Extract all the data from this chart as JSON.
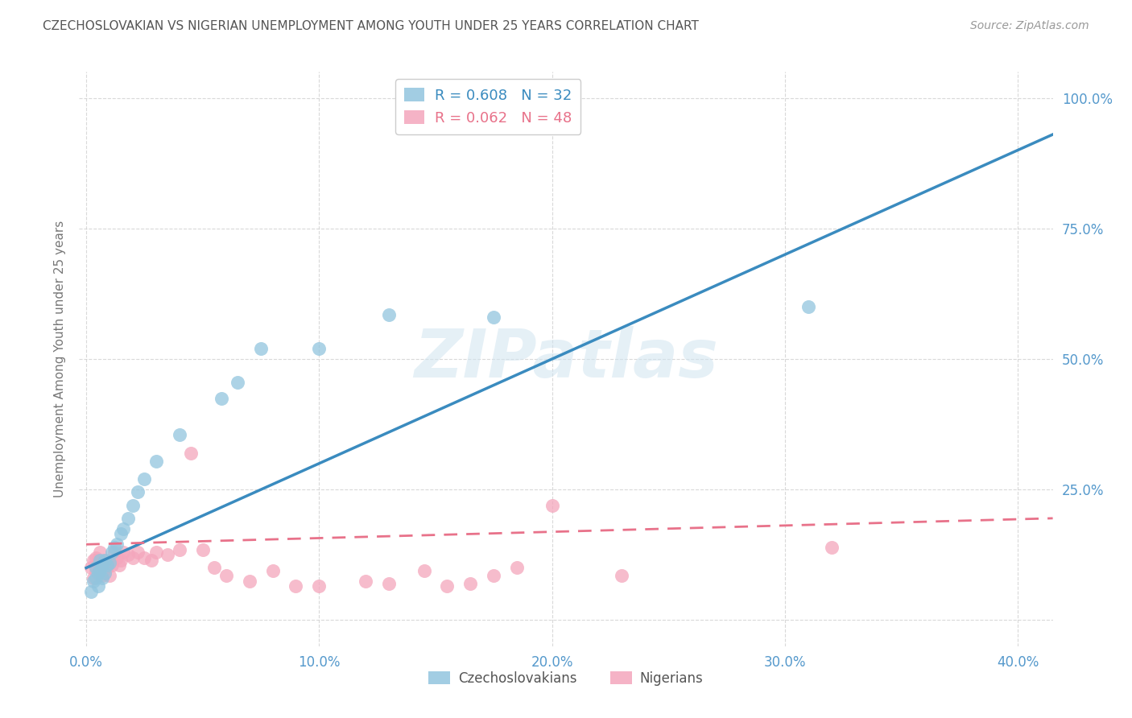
{
  "title": "CZECHOSLOVAKIAN VS NIGERIAN UNEMPLOYMENT AMONG YOUTH UNDER 25 YEARS CORRELATION CHART",
  "source": "Source: ZipAtlas.com",
  "ylabel": "Unemployment Among Youth under 25 years",
  "xlim": [
    -0.003,
    0.415
  ],
  "ylim": [
    -0.05,
    1.05
  ],
  "ytick_vals": [
    0.0,
    0.25,
    0.5,
    0.75,
    1.0
  ],
  "xtick_vals": [
    0.0,
    0.1,
    0.2,
    0.3,
    0.4
  ],
  "xtick_labels": [
    "0.0%",
    "10.0%",
    "20.0%",
    "30.0%",
    "40.0%"
  ],
  "ytick_labels": [
    "",
    "25.0%",
    "50.0%",
    "75.0%",
    "100.0%"
  ],
  "blue_color": "#92c5de",
  "pink_color": "#f4a6bc",
  "blue_line_color": "#3a8bbf",
  "pink_line_color": "#e8728a",
  "title_color": "#555555",
  "axis_tick_color": "#5599cc",
  "grid_color": "#d0d0d0",
  "watermark": "ZIPatlas",
  "blue_R": "R = 0.608",
  "blue_N": "N = 32",
  "pink_R": "R = 0.062",
  "pink_N": "N = 48",
  "blue_line_x0": 0.0,
  "blue_line_y0": 0.1,
  "blue_line_x1": 0.415,
  "blue_line_y1": 0.93,
  "pink_line_x0": 0.0,
  "pink_line_y0": 0.145,
  "pink_line_x1": 0.415,
  "pink_line_y1": 0.195,
  "blue_pts_x": [
    0.002,
    0.003,
    0.004,
    0.004,
    0.005,
    0.005,
    0.006,
    0.006,
    0.007,
    0.007,
    0.008,
    0.008,
    0.009,
    0.01,
    0.011,
    0.012,
    0.013,
    0.015,
    0.016,
    0.018,
    0.02,
    0.022,
    0.025,
    0.03,
    0.04,
    0.058,
    0.065,
    0.075,
    0.1,
    0.13,
    0.175,
    0.31
  ],
  "blue_pts_y": [
    0.055,
    0.075,
    0.08,
    0.1,
    0.065,
    0.09,
    0.095,
    0.115,
    0.08,
    0.105,
    0.09,
    0.115,
    0.105,
    0.11,
    0.13,
    0.14,
    0.145,
    0.165,
    0.175,
    0.195,
    0.22,
    0.245,
    0.27,
    0.305,
    0.355,
    0.425,
    0.455,
    0.52,
    0.52,
    0.585,
    0.58,
    0.6
  ],
  "pink_pts_x": [
    0.002,
    0.003,
    0.003,
    0.004,
    0.004,
    0.005,
    0.005,
    0.006,
    0.006,
    0.007,
    0.007,
    0.008,
    0.008,
    0.009,
    0.01,
    0.01,
    0.011,
    0.012,
    0.013,
    0.014,
    0.015,
    0.016,
    0.018,
    0.02,
    0.022,
    0.025,
    0.028,
    0.03,
    0.035,
    0.04,
    0.045,
    0.05,
    0.055,
    0.06,
    0.07,
    0.08,
    0.09,
    0.1,
    0.12,
    0.13,
    0.145,
    0.155,
    0.165,
    0.175,
    0.185,
    0.2,
    0.23,
    0.32
  ],
  "pink_pts_y": [
    0.1,
    0.08,
    0.115,
    0.095,
    0.12,
    0.09,
    0.115,
    0.105,
    0.13,
    0.085,
    0.11,
    0.09,
    0.115,
    0.1,
    0.085,
    0.11,
    0.105,
    0.13,
    0.12,
    0.105,
    0.115,
    0.13,
    0.125,
    0.12,
    0.13,
    0.12,
    0.115,
    0.13,
    0.125,
    0.135,
    0.32,
    0.135,
    0.1,
    0.085,
    0.075,
    0.095,
    0.065,
    0.065,
    0.075,
    0.07,
    0.095,
    0.065,
    0.07,
    0.085,
    0.1,
    0.22,
    0.085,
    0.14
  ]
}
